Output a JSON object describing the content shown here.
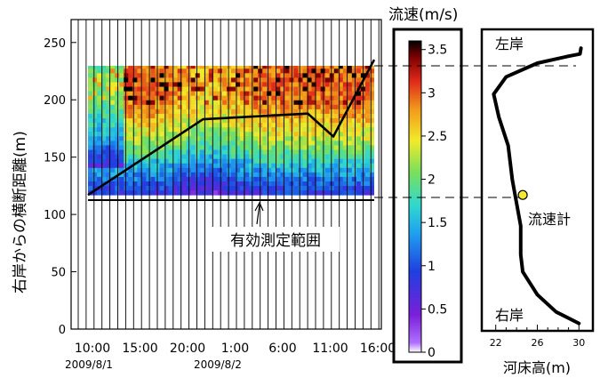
{
  "chart_data": [
    {
      "type": "heatmap",
      "title": "",
      "ylabel": "右岸からの横断距離(m)",
      "xlabel": "",
      "x_tick_labels": [
        "10:00",
        "15:00",
        "20:00",
        "1:00",
        "6:00",
        "11:00",
        "16:00"
      ],
      "x_date_labels": [
        "2009/8/1",
        "2009/8/2"
      ],
      "y_ticks": [
        "0",
        "50",
        "100",
        "150",
        "200",
        "250"
      ],
      "ylim": [
        0,
        270
      ],
      "measurement_zone_y_range": [
        117,
        235
      ],
      "annotation": "有効測定範囲",
      "water_edge_line": {
        "x": [
          "10:00",
          "22:30",
          "5:00",
          "10:00",
          "22:30"
        ],
        "y": [
          117,
          183,
          188,
          168,
          235
        ]
      },
      "velocity_profile_rows": {
        "y": [
          120,
          140,
          155,
          170,
          185,
          200,
          215,
          230
        ],
        "typical_velocity": [
          0.9,
          1.5,
          2.0,
          2.4,
          2.7,
          2.9,
          3.0,
          2.9
        ]
      },
      "grid": true
    },
    {
      "type": "colorbar",
      "title": "流速(m/s)",
      "ticks": [
        "0",
        "0.5",
        "1",
        "1.5",
        "2",
        "2.5",
        "3",
        "3.5"
      ],
      "range": [
        0,
        3.6
      ],
      "colors": [
        "#ffffff",
        "#7a1fd9",
        "#1f3fe0",
        "#1f9ff0",
        "#2fd8d0",
        "#7ae05a",
        "#f2ea2a",
        "#f29a1a",
        "#e02a1a",
        "#7a0000",
        "#000000"
      ]
    },
    {
      "type": "line",
      "title": "",
      "xlabel": "河床高(m)",
      "x_ticks": [
        "22",
        "26",
        "30"
      ],
      "xlim": [
        21,
        31
      ],
      "ylim": [
        0,
        270
      ],
      "series": [
        {
          "x": [
            30.2,
            30.1,
            29.0,
            26.0,
            23.0,
            21.8,
            22.3,
            23.2,
            23.6,
            24.0,
            24.4,
            24.4,
            24.6,
            26.0,
            27.8,
            30.0
          ],
          "y": [
            245,
            240,
            238,
            232,
            220,
            205,
            185,
            160,
            130,
            110,
            90,
            65,
            50,
            30,
            15,
            5
          ]
        }
      ],
      "labels": {
        "left_bank": "左岸",
        "right_bank": "右岸",
        "gauge": "流速計"
      },
      "gauge_point": {
        "x": 24.6,
        "y": 117
      }
    }
  ]
}
